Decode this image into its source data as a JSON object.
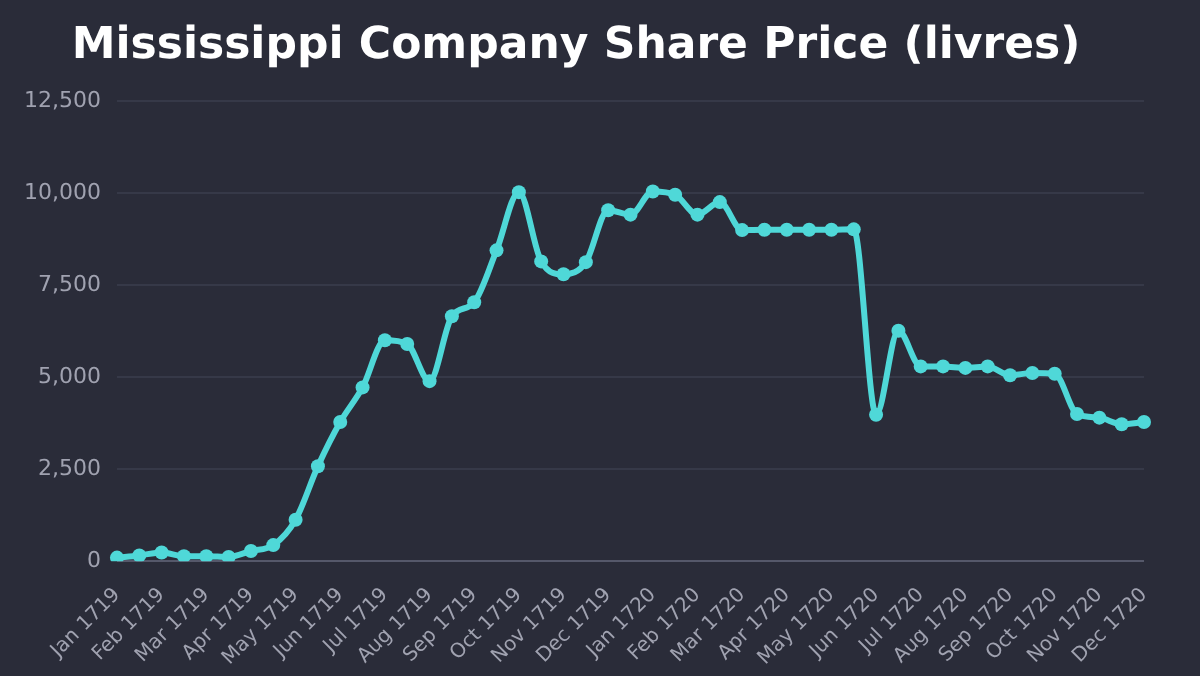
{
  "chart_data": {
    "type": "line",
    "title": "Mississippi Company Share Price (livres)",
    "categories": [
      "Jan 1719",
      null,
      "Feb 1719",
      null,
      "Mar 1719",
      null,
      "Apr 1719",
      null,
      "May 1719",
      null,
      "Jun 1719",
      null,
      "Jul 1719",
      null,
      "Aug 1719",
      null,
      "Sep 1719",
      null,
      "Oct 1719",
      null,
      "Nov 1719",
      null,
      "Dec 1719",
      null,
      "Jan 1720",
      null,
      "Feb 1720",
      null,
      "Mar 1720",
      null,
      "Apr 1720",
      null,
      "May 1720",
      null,
      "Jun 1720",
      null,
      "Jul 1720",
      null,
      "Aug 1720",
      null,
      "Sep 1720",
      null,
      "Oct 1720",
      null,
      "Nov 1720",
      null,
      "Dec 1720"
    ],
    "series": [
      {
        "color": "#4fd8d8",
        "values": [
          100,
          160,
          240,
          140,
          140,
          120,
          280,
          440,
          1130,
          2580,
          3780,
          4720,
          6000,
          5900,
          4890,
          6650,
          7030,
          8440,
          10020,
          8140,
          7790,
          8120,
          9530,
          9410,
          10040,
          9950,
          9410,
          9750,
          8990,
          9000,
          9000,
          9000,
          9000,
          9010,
          3980,
          6260,
          5290,
          5290,
          5250,
          5290,
          5050,
          5110,
          5090,
          4000,
          3900,
          3720,
          3780
        ]
      }
    ],
    "ylim": [
      0,
      12500
    ],
    "yticks": [
      0,
      {
        "value": 2500,
        "label": "2,500"
      },
      {
        "value": 5000,
        "label": "5,000"
      },
      {
        "value": 7500,
        "label": "7,500"
      },
      {
        "value": 10000,
        "label": "10,000"
      },
      {
        "value": 12500,
        "label": "12,500"
      }
    ],
    "grid": "y",
    "legend": false,
    "marker": "circle",
    "line_style": "solid"
  }
}
